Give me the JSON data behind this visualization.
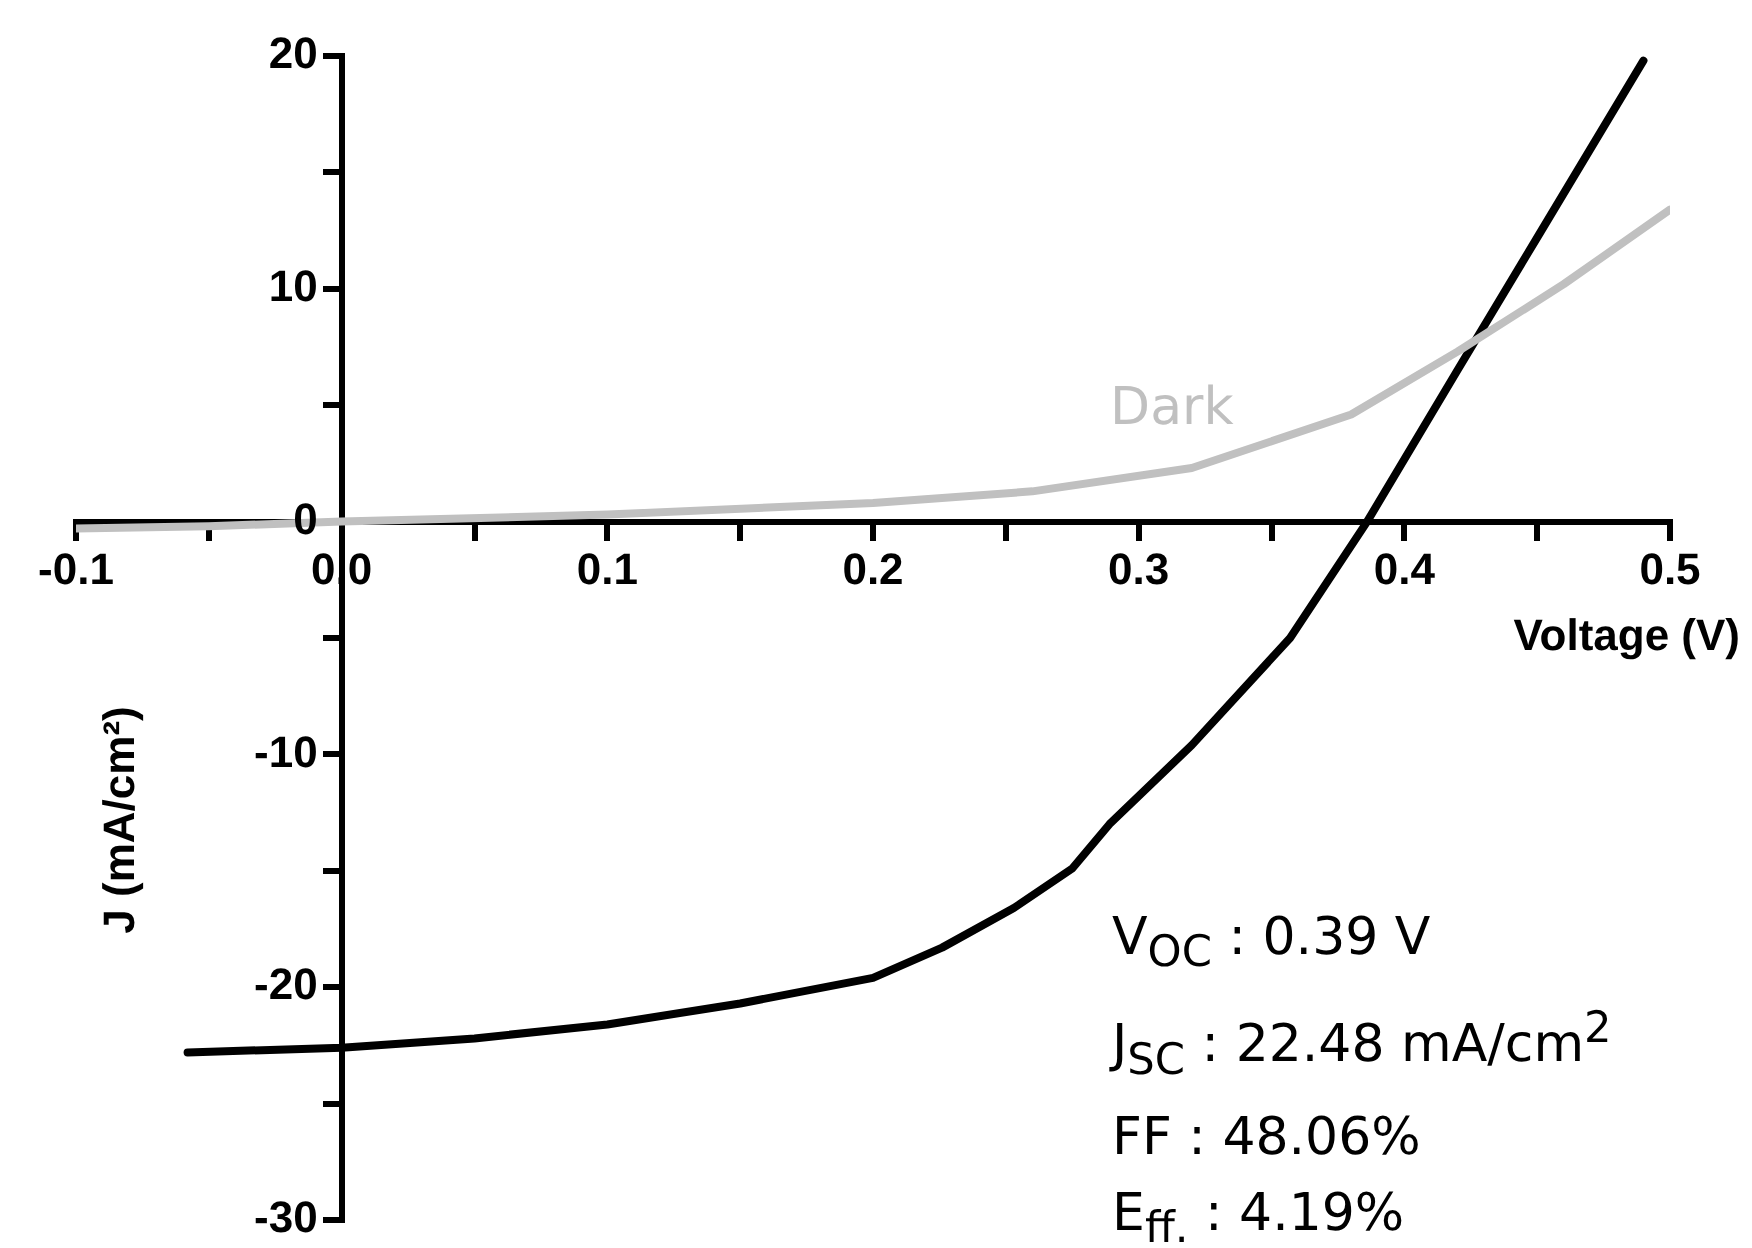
{
  "chart_data": {
    "type": "line",
    "xlabel": "Voltage (V)",
    "ylabel": "J (mA/cm²)",
    "xlim": [
      -0.1,
      0.5
    ],
    "ylim": [
      -30,
      20
    ],
    "xticks": [
      {
        "value": -0.1,
        "label": "-0.1"
      },
      {
        "value": -0.05,
        "label": null
      },
      {
        "value": 0,
        "label": "0.0"
      },
      {
        "value": 0.05,
        "label": null
      },
      {
        "value": 0.1,
        "label": "0.1"
      },
      {
        "value": 0.15,
        "label": null
      },
      {
        "value": 0.2,
        "label": "0.2"
      },
      {
        "value": 0.25,
        "label": null
      },
      {
        "value": 0.3,
        "label": "0.3"
      },
      {
        "value": 0.35,
        "label": null
      },
      {
        "value": 0.4,
        "label": "0.4"
      },
      {
        "value": 0.45,
        "label": null
      },
      {
        "value": 0.5,
        "label": "0.5"
      }
    ],
    "yticks": [
      -30,
      {
        "value": -25,
        "label": null
      },
      -20,
      {
        "value": -15,
        "label": null
      },
      -10,
      {
        "value": -5,
        "label": null
      },
      0,
      {
        "value": 5,
        "label": null
      },
      10,
      {
        "value": 15,
        "label": null
      },
      20
    ],
    "grid": false,
    "legend": false,
    "marker": "none",
    "line_style": "solid",
    "series": [
      {
        "name": "Dark",
        "color": "#c0c0c0",
        "x": [
          -0.1,
          -0.05,
          0,
          0.1,
          0.2,
          0.26,
          0.32,
          0.38,
          0.42,
          0.46,
          0.5
        ],
        "values": [
          -0.3,
          -0.2,
          0,
          0.3,
          0.8,
          1.3,
          2.3,
          4.6,
          7.3,
          10.2,
          13.4
        ]
      },
      {
        "color": "#000000",
        "x": [
          -0.058,
          0,
          0.05,
          0.1,
          0.15,
          0.2,
          0.226,
          0.253,
          0.275,
          0.289,
          0.32,
          0.357,
          0.386,
          0.42,
          0.45,
          0.49
        ],
        "values": [
          -22.8,
          -22.6,
          -22.2,
          -21.6,
          -20.7,
          -19.6,
          -18.3,
          -16.6,
          -14.9,
          -13.0,
          -9.6,
          -5.0,
          0,
          6.5,
          12.2,
          19.8
        ]
      }
    ],
    "annotations": [
      "V$_{OC}$ : 0.39 V",
      "J$_{SC}$ : 22.48 mA/cm$^{2}$",
      "FF : 48.06%",
      "E$_{ff.}$ : 4.19%"
    ]
  }
}
